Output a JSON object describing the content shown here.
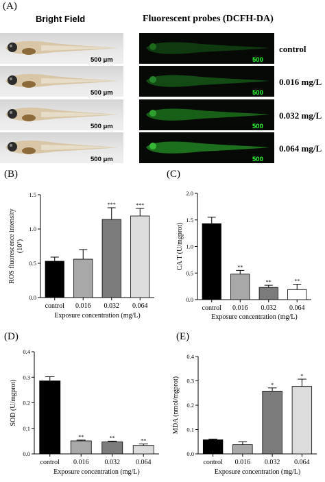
{
  "figure_a": {
    "letter": "(A)",
    "col_bright": "Bright Field",
    "col_fluor": "Fluorescent probes (DCFH-DA)",
    "rows": [
      {
        "label": "control",
        "scale_bf": "500 μm",
        "scale_fl": "500 μm"
      },
      {
        "label": "0.016 mg/L",
        "scale_bf": "500 μm",
        "scale_fl": "500 μm"
      },
      {
        "label": "0.032 mg/L",
        "scale_bf": "500 μm",
        "scale_fl": "500 μm"
      },
      {
        "label": "0.064 mg/L",
        "scale_bf": "500 μm",
        "scale_fl": "500 μm"
      }
    ]
  },
  "chart_data": [
    {
      "panel": "(B)",
      "type": "bar",
      "categories": [
        "control",
        "0.016",
        "0.032",
        "0.064"
      ],
      "values": [
        0.53,
        0.56,
        1.14,
        1.19
      ],
      "errors": [
        0.06,
        0.14,
        0.17,
        0.11
      ],
      "significance": [
        "",
        "",
        "***",
        "***"
      ],
      "ylabel": "ROS fluorescence intensity (10⁷)",
      "ylabel_main": "ROS fluorescence intensity",
      "ylabel_unit": "(10⁷)",
      "xlabel": "Exposure concentration (mg/L)",
      "ylim": [
        0,
        1.5
      ],
      "yticks": [
        "0.0",
        "0.5",
        "1.0",
        "1.5"
      ],
      "ytick_values": [
        0,
        0.5,
        1.0,
        1.5
      ],
      "colors": [
        "#000000",
        "#a8a8a8",
        "#7b7b7b",
        "#dcdcdc"
      ]
    },
    {
      "panel": "(C)",
      "type": "bar",
      "categories": [
        "control",
        "0.016",
        "0.032",
        "0.064"
      ],
      "values": [
        1.43,
        0.48,
        0.23,
        0.19
      ],
      "errors": [
        0.12,
        0.07,
        0.04,
        0.1
      ],
      "significance": [
        "",
        "**",
        "**",
        "**"
      ],
      "ylabel": "CA T (U/mgprot)",
      "xlabel": "Exposure concentration (mg/L)",
      "ylim": [
        0,
        2.0
      ],
      "yticks": [
        "0.0",
        "0.5",
        "1.0",
        "1.5",
        "2.0"
      ],
      "ytick_values": [
        0,
        0.5,
        1.0,
        1.5,
        2.0
      ],
      "colors": [
        "#000000",
        "#a8a8a8",
        "#7b7b7b",
        "#ffffff"
      ]
    },
    {
      "panel": "(D)",
      "type": "bar",
      "categories": [
        "control",
        "0.016",
        "0.032",
        "0.064"
      ],
      "values": [
        0.286,
        0.051,
        0.047,
        0.033
      ],
      "errors": [
        0.016,
        0.003,
        0.003,
        0.006
      ],
      "significance": [
        "",
        "**",
        "**",
        "**"
      ],
      "ylabel": "SOD (U/mgprot)",
      "xlabel": "Exposure concentration (mg/L)",
      "ylim": [
        0,
        0.4
      ],
      "yticks": [
        "0.0",
        "0.1",
        "0.2",
        "0.3",
        "0.4"
      ],
      "ytick_values": [
        0,
        0.1,
        0.2,
        0.3,
        0.4
      ],
      "colors": [
        "#000000",
        "#a8a8a8",
        "#7b7b7b",
        "#dcdcdc"
      ]
    },
    {
      "panel": "(E)",
      "type": "bar",
      "categories": [
        "control",
        "0.016",
        "0.032",
        "0.064"
      ],
      "values": [
        0.058,
        0.038,
        0.258,
        0.277
      ],
      "errors": [
        0.003,
        0.012,
        0.013,
        0.03
      ],
      "significance": [
        "",
        "",
        "*",
        "*"
      ],
      "ylabel": "MDA (nmol/mgprot)",
      "xlabel": "Exposure concentration (mg/L)",
      "ylim": [
        0,
        0.4
      ],
      "yticks": [
        "0.0",
        "0.1",
        "0.2",
        "0.3",
        "0.4"
      ],
      "ytick_values": [
        0,
        0.1,
        0.2,
        0.3,
        0.4
      ],
      "colors": [
        "#000000",
        "#a8a8a8",
        "#7b7b7b",
        "#dcdcdc"
      ]
    }
  ]
}
